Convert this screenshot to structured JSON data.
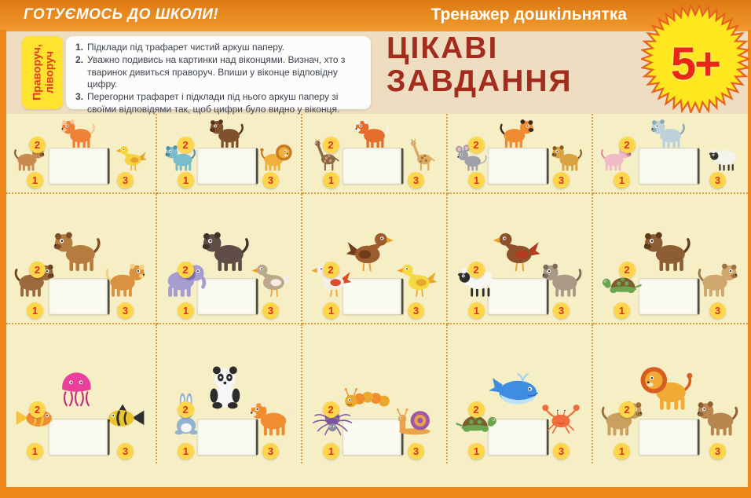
{
  "colors": {
    "frame": "#ec8718",
    "band": "#eeddc1",
    "page_bg": "#f6efc6",
    "title_red": "#a32c1c",
    "label_bg": "#ffe32e",
    "label_text": "#e03b17",
    "badge_bg": "#ffd54a",
    "badge_text": "#d93220",
    "star_bg": "#ffe720",
    "star_edge": "#e8611e",
    "age_text": "#e82718",
    "divider": "#dd9b3f",
    "instr_text": "#3f4450"
  },
  "top_bar": {
    "left_title": "ГОТУЄМОСЬ ДО ШКОЛИ!",
    "right_title": "Тренажер дошкільнятка"
  },
  "header": {
    "side_label_lines": [
      "Праворуч,",
      "ліворуч"
    ],
    "instructions": [
      {
        "num": "1.",
        "text": "Підклади під трафарет чистий аркуш паперу."
      },
      {
        "num": "2.",
        "text": "Уважно подивись на картинки над віконцями. Визнач, хто з тваринок дивиться праворуч. Впиши у віконце відповідну цифру."
      },
      {
        "num": "3.",
        "text": "Перегорни трафарет і підклади під нього аркуш паперу зі своїми відповідями так, щоб цифри було видно у віконця."
      }
    ],
    "title_line1": "ЦІКАВІ",
    "title_line2": "ЗАВДАННЯ",
    "age_badge": "5+"
  },
  "grid": {
    "rows": [
      {
        "cells": [
          {
            "animals": [
              {
                "num": "1",
                "name": "dog",
                "type": "quad",
                "color": "#c98a4e",
                "color2": "#8a5a2e",
                "facing": "right"
              },
              {
                "num": "2",
                "name": "cat",
                "type": "quad",
                "color": "#f08138",
                "color2": "#f9c79b",
                "facing": "front"
              },
              {
                "num": "3",
                "name": "duckling",
                "type": "bird",
                "color": "#f5d33c",
                "color2": "#ef9f2b",
                "facing": "left"
              }
            ]
          },
          {
            "animals": [
              {
                "num": "1",
                "name": "hippo",
                "type": "quad",
                "color": "#79bccb",
                "color2": "#548fa6",
                "facing": "front"
              },
              {
                "num": "2",
                "name": "dog",
                "type": "quad",
                "color": "#7f512d",
                "color2": "#5a3418",
                "facing": "left"
              },
              {
                "num": "3",
                "name": "lion",
                "type": "lion",
                "color": "#eeb13d",
                "color2": "#c97a22",
                "facing": "right"
              }
            ]
          },
          {
            "animals": [
              {
                "num": "1",
                "name": "ostrich",
                "type": "longneck",
                "color": "#8d6848",
                "color2": "#c9a06a",
                "facing": "left"
              },
              {
                "num": "2",
                "name": "fox",
                "type": "quad",
                "color": "#e56d2b",
                "color2": "#f7f2e8",
                "facing": "front"
              },
              {
                "num": "3",
                "name": "giraffe",
                "type": "longneck",
                "color": "#ddab60",
                "color2": "#a8743c",
                "facing": "left"
              }
            ]
          },
          {
            "animals": [
              {
                "num": "1",
                "name": "mouse",
                "type": "mouse",
                "color": "#9fa0a8",
                "color2": "#e9b7c9",
                "facing": "left"
              },
              {
                "num": "2",
                "name": "tiger",
                "type": "quad",
                "color": "#f08c2f",
                "color2": "#3a2a1a",
                "facing": "right"
              },
              {
                "num": "3",
                "name": "leopard",
                "type": "quad",
                "color": "#d9a342",
                "color2": "#8a5a1e",
                "facing": "front"
              }
            ]
          },
          {
            "animals": [
              {
                "num": "1",
                "name": "pig",
                "type": "quad",
                "color": "#f0bac7",
                "color2": "#d9899f",
                "facing": "right"
              },
              {
                "num": "2",
                "name": "goat",
                "type": "quad",
                "color": "#bcd1d9",
                "color2": "#8ba9b5",
                "facing": "left"
              },
              {
                "num": "3",
                "name": "sheep",
                "type": "sheep",
                "color": "#f4f3ec",
                "color2": "#333333",
                "facing": "front"
              }
            ]
          }
        ]
      },
      {
        "cells": [
          {
            "animals": [
              {
                "num": "1",
                "name": "dog",
                "type": "quad",
                "color": "#9a6a3c",
                "color2": "#6b4521",
                "facing": "right"
              },
              {
                "num": "2",
                "name": "squirrel",
                "type": "quad",
                "color": "#b67b3e",
                "color2": "#7d4f24",
                "facing": "front"
              },
              {
                "num": "3",
                "name": "horse",
                "type": "quad",
                "color": "#da9140",
                "color2": "#f2d27d",
                "facing": "right"
              }
            ]
          },
          {
            "animals": [
              {
                "num": "1",
                "name": "elephant",
                "type": "elephant",
                "color": "#a79ccf",
                "color2": "#8071b5",
                "facing": "right"
              },
              {
                "num": "2",
                "name": "hippo",
                "type": "quad",
                "color": "#5f4c46",
                "color2": "#423229",
                "facing": "front"
              },
              {
                "num": "3",
                "name": "goose",
                "type": "bird",
                "color": "#bba98d",
                "color2": "#f5efe3",
                "facing": "left"
              }
            ]
          },
          {
            "animals": [
              {
                "num": "1",
                "name": "rooster",
                "type": "bird",
                "color": "#f3efe5",
                "color2": "#d84e2a",
                "facing": "left"
              },
              {
                "num": "2",
                "name": "hen",
                "type": "bird",
                "color": "#9d5c2e",
                "color2": "#703c19",
                "facing": "right"
              },
              {
                "num": "3",
                "name": "chick",
                "type": "bird",
                "color": "#f3da42",
                "color2": "#eaa82b",
                "facing": "front"
              }
            ]
          },
          {
            "animals": [
              {
                "num": "1",
                "name": "sheep",
                "type": "sheep",
                "color": "#f7f6f0",
                "color2": "#2d2d2d",
                "facing": "left"
              },
              {
                "num": "2",
                "name": "turkey",
                "type": "bird",
                "color": "#8d512c",
                "color2": "#b53a20",
                "facing": "front"
              },
              {
                "num": "3",
                "name": "donkey",
                "type": "quad",
                "color": "#ab9886",
                "color2": "#7e6b59",
                "facing": "left"
              }
            ]
          },
          {
            "animals": [
              {
                "num": "1",
                "name": "turtle",
                "type": "turtle",
                "color": "#6ba550",
                "color2": "#7e5c30",
                "facing": "left"
              },
              {
                "num": "2",
                "name": "bear",
                "type": "quad",
                "color": "#8d5d35",
                "color2": "#603c1d",
                "facing": "front"
              },
              {
                "num": "3",
                "name": "puppy",
                "type": "quad",
                "color": "#d0a76d",
                "color2": "#9c7441",
                "facing": "right"
              }
            ]
          }
        ]
      },
      {
        "cells": [
          {
            "animals": [
              {
                "num": "1",
                "name": "goldfish",
                "type": "fish",
                "color": "#f08d2f",
                "color2": "#f5c53e",
                "facing": "right"
              },
              {
                "num": "2",
                "name": "jellyfish",
                "type": "jelly",
                "color": "#ea3f9a",
                "color2": "#c22a7c",
                "facing": "front"
              },
              {
                "num": "3",
                "name": "striped-fish",
                "type": "fish",
                "color": "#e9c42e",
                "color2": "#2e2e2e",
                "facing": "left"
              }
            ]
          },
          {
            "animals": [
              {
                "num": "1",
                "name": "rabbit",
                "type": "rabbit",
                "color": "#92b2cd",
                "color2": "#f6f6f6",
                "facing": "left"
              },
              {
                "num": "2",
                "name": "panda",
                "type": "panda",
                "color": "#f6f6f6",
                "color2": "#2c2c2c",
                "facing": "front"
              },
              {
                "num": "3",
                "name": "squirrel",
                "type": "quad",
                "color": "#f08d2f",
                "color2": "#f6e9d2",
                "facing": "left"
              }
            ]
          },
          {
            "animals": [
              {
                "num": "1",
                "name": "spider",
                "type": "spider",
                "color": "#7e51a3",
                "color2": "#8a8a96",
                "facing": "front"
              },
              {
                "num": "2",
                "name": "caterpillar",
                "type": "caterpillar",
                "color": "#eaa92c",
                "color2": "#f08d2f",
                "facing": "left"
              },
              {
                "num": "3",
                "name": "snail",
                "type": "snail",
                "color": "#eaa348",
                "color2": "#a055a5",
                "facing": "left"
              }
            ]
          },
          {
            "animals": [
              {
                "num": "1",
                "name": "turtle",
                "type": "turtle",
                "color": "#6ba550",
                "color2": "#7e5c30",
                "facing": "right"
              },
              {
                "num": "2",
                "name": "whale",
                "type": "whale",
                "color": "#3f8de3",
                "color2": "#2c6cbb",
                "facing": "right"
              },
              {
                "num": "3",
                "name": "crab",
                "type": "crab",
                "color": "#f06d3c",
                "color2": "#da4e2a",
                "facing": "front"
              }
            ]
          },
          {
            "animals": [
              {
                "num": "1",
                "name": "cougar",
                "type": "quad",
                "color": "#caa05e",
                "color2": "#9c713c",
                "facing": "right"
              },
              {
                "num": "2",
                "name": "lion",
                "type": "lion",
                "color": "#f0aa35",
                "color2": "#d85e20",
                "facing": "front"
              },
              {
                "num": "3",
                "name": "camel",
                "type": "quad",
                "color": "#b8874f",
                "color2": "#8d6132",
                "facing": "left"
              }
            ]
          }
        ]
      }
    ]
  }
}
